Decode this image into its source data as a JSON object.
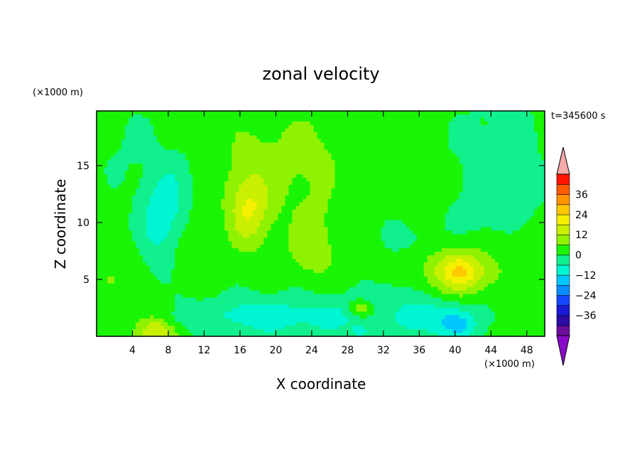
{
  "chart_data": {
    "type": "heatmap",
    "title": "zonal velocity",
    "xlabel": "X coordinate",
    "ylabel": "Z coordinate",
    "x_unit": "(×1000 m)",
    "y_unit": "(×1000 m)",
    "time_label": "t=345600 s",
    "xlim": [
      0,
      50
    ],
    "ylim": [
      0,
      19.8
    ],
    "x_ticks": [
      4,
      8,
      12,
      16,
      20,
      24,
      28,
      32,
      36,
      40,
      44,
      48
    ],
    "y_ticks": [
      5,
      10,
      15
    ],
    "colorbar": {
      "levels": [
        -42,
        -36,
        -30,
        -24,
        -18,
        -12,
        -6,
        0,
        6,
        12,
        18,
        24,
        30,
        36,
        42
      ],
      "tick_values": [
        -36,
        -24,
        -12,
        0,
        12,
        24,
        36
      ],
      "tick_labels": [
        "−36",
        "−24",
        "−12",
        "0",
        "12",
        "24",
        "36"
      ],
      "colors": [
        "#6a0d9a",
        "#2b0aa5",
        "#1a1ad5",
        "#1546ff",
        "#0a8cff",
        "#00c8ff",
        "#00f5d2",
        "#10f08c",
        "#19f505",
        "#8ff203",
        "#c8f000",
        "#f5f000",
        "#ffc800",
        "#ff9400",
        "#ff5a00",
        "#ff1400"
      ],
      "under_color": "#8a0ac8",
      "over_color": "#f4aaaa"
    },
    "background_value": 2,
    "features": [
      {
        "x": 6.5,
        "z": 0.4,
        "sx": 2.6,
        "sz": 1.8,
        "a": 12,
        "rot": 0
      },
      {
        "x": 6.5,
        "z": 0.7,
        "sx": 1.6,
        "sz": 1.0,
        "a": 6,
        "rot": 0
      },
      {
        "x": 3.0,
        "z": 6.0,
        "sx": 2.2,
        "sz": 2.0,
        "a": 4,
        "rot": 0
      },
      {
        "x": 1.5,
        "z": 4.8,
        "sx": 1.0,
        "sz": 0.9,
        "a": 4,
        "rot": 0
      },
      {
        "x": 7.2,
        "z": 11.5,
        "sx": 2.4,
        "sz": 4.0,
        "a": -10,
        "rot": 0.35
      },
      {
        "x": 7.5,
        "z": 9.0,
        "sx": 1.8,
        "sz": 4.5,
        "a": -4,
        "rot": 0.3
      },
      {
        "x": 8.0,
        "z": 1.5,
        "sx": 3.0,
        "sz": 0.8,
        "a": -4,
        "rot": 0
      },
      {
        "x": 20.0,
        "z": 1.6,
        "sx": 11.0,
        "sz": 2.0,
        "a": -9,
        "rot": 0
      },
      {
        "x": 18.0,
        "z": 2.0,
        "sx": 4.0,
        "sz": 1.2,
        "a": -3,
        "rot": 0
      },
      {
        "x": 27.0,
        "z": 2.0,
        "sx": 3.0,
        "sz": 1.5,
        "a": -4,
        "rot": 0
      },
      {
        "x": 29.5,
        "z": 2.4,
        "sx": 1.4,
        "sz": 0.7,
        "a": 14,
        "rot": 0
      },
      {
        "x": 29.5,
        "z": 0.4,
        "sx": 1.2,
        "sz": 0.5,
        "a": -8,
        "rot": 0
      },
      {
        "x": 38.0,
        "z": 1.5,
        "sx": 5.0,
        "sz": 1.8,
        "a": -12,
        "rot": 0
      },
      {
        "x": 40.5,
        "z": 0.9,
        "sx": 1.8,
        "sz": 1.0,
        "a": -8,
        "rot": 0
      },
      {
        "x": 33.0,
        "z": 3.5,
        "sx": 2.5,
        "sz": 1.2,
        "a": -5,
        "rot": 0
      },
      {
        "x": 40.5,
        "z": 5.7,
        "sx": 3.6,
        "sz": 2.0,
        "a": 18,
        "rot": 0
      },
      {
        "x": 40.5,
        "z": 5.7,
        "sx": 1.6,
        "sz": 1.0,
        "a": 6,
        "rot": 0
      },
      {
        "x": 47.5,
        "z": 7.0,
        "sx": 2.5,
        "sz": 3.0,
        "a": 3,
        "rot": 0
      },
      {
        "x": 48.5,
        "z": 1.5,
        "sx": 1.5,
        "sz": 1.5,
        "a": 4,
        "rot": 0
      },
      {
        "x": 17.0,
        "z": 11.0,
        "sx": 2.2,
        "sz": 3.0,
        "a": 14,
        "rot": 0
      },
      {
        "x": 17.5,
        "z": 14.5,
        "sx": 4.0,
        "sz": 5.0,
        "a": 5,
        "rot": 0
      },
      {
        "x": 24.0,
        "z": 16.0,
        "sx": 4.5,
        "sz": 4.0,
        "a": 5,
        "rot": 0
      },
      {
        "x": 24.5,
        "z": 9.0,
        "sx": 3.0,
        "sz": 3.5,
        "a": 6,
        "rot": 0
      },
      {
        "x": 24.0,
        "z": 7.0,
        "sx": 2.5,
        "sz": 1.5,
        "a": 4,
        "rot": 0
      },
      {
        "x": 30.0,
        "z": 9.5,
        "sx": 5.0,
        "sz": 4.0,
        "a": -1.5,
        "rot": 0
      },
      {
        "x": 45.0,
        "z": 16.0,
        "sx": 5.5,
        "sz": 6.0,
        "a": -4,
        "rot": 0
      },
      {
        "x": 44.0,
        "z": 11.0,
        "sx": 5.0,
        "sz": 3.0,
        "a": -3,
        "rot": 0
      },
      {
        "x": 3.0,
        "z": 17.0,
        "sx": 4.0,
        "sz": 4.0,
        "a": -2.5,
        "rot": 0
      },
      {
        "x": 36.0,
        "z": 8.5,
        "sx": 3.0,
        "sz": 1.5,
        "a": -2.5,
        "rot": 0
      }
    ]
  }
}
